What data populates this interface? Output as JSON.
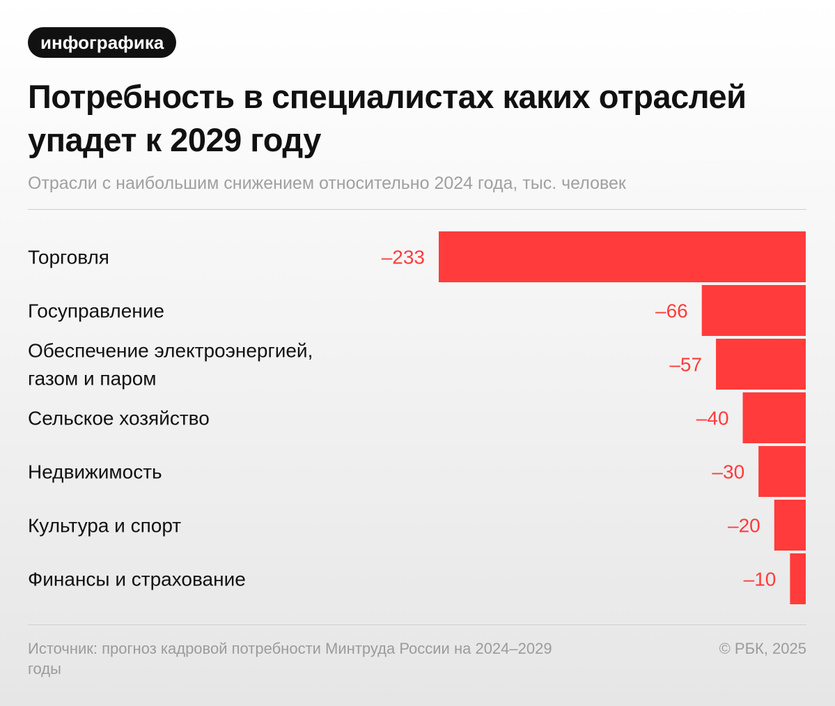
{
  "badge": "инфографика",
  "title": "Потребность в специалистах каких отраслей упадет к 2029 году",
  "subtitle": "Отрасли с наибольшим снижением относительно 2024 года, тыс. человек",
  "source": "Источник: прогноз кадровой потребности Минтруда России на 2024–2029 годы",
  "copyright": "© РБК, 2025",
  "colors": {
    "bar": "#ff3b3b",
    "value_text": "#ff3b3b"
  },
  "chart_data": {
    "type": "bar",
    "orientation": "horizontal",
    "categories": [
      [
        "Торговля"
      ],
      [
        "Госуправление"
      ],
      [
        "Обеспечение электроэнергией,",
        "газом и паром"
      ],
      [
        "Сельское хозяйство"
      ],
      [
        "Недвижимость"
      ],
      [
        "Культура и спорт"
      ],
      [
        "Финансы и страхование"
      ]
    ],
    "values": [
      -233,
      -66,
      -57,
      -40,
      -30,
      -20,
      -10
    ],
    "value_labels": [
      "–233",
      "–66",
      "–57",
      "–40",
      "–30",
      "–20",
      "–10"
    ],
    "xlim": [
      -233,
      0
    ],
    "legend": "none",
    "grid": false
  }
}
